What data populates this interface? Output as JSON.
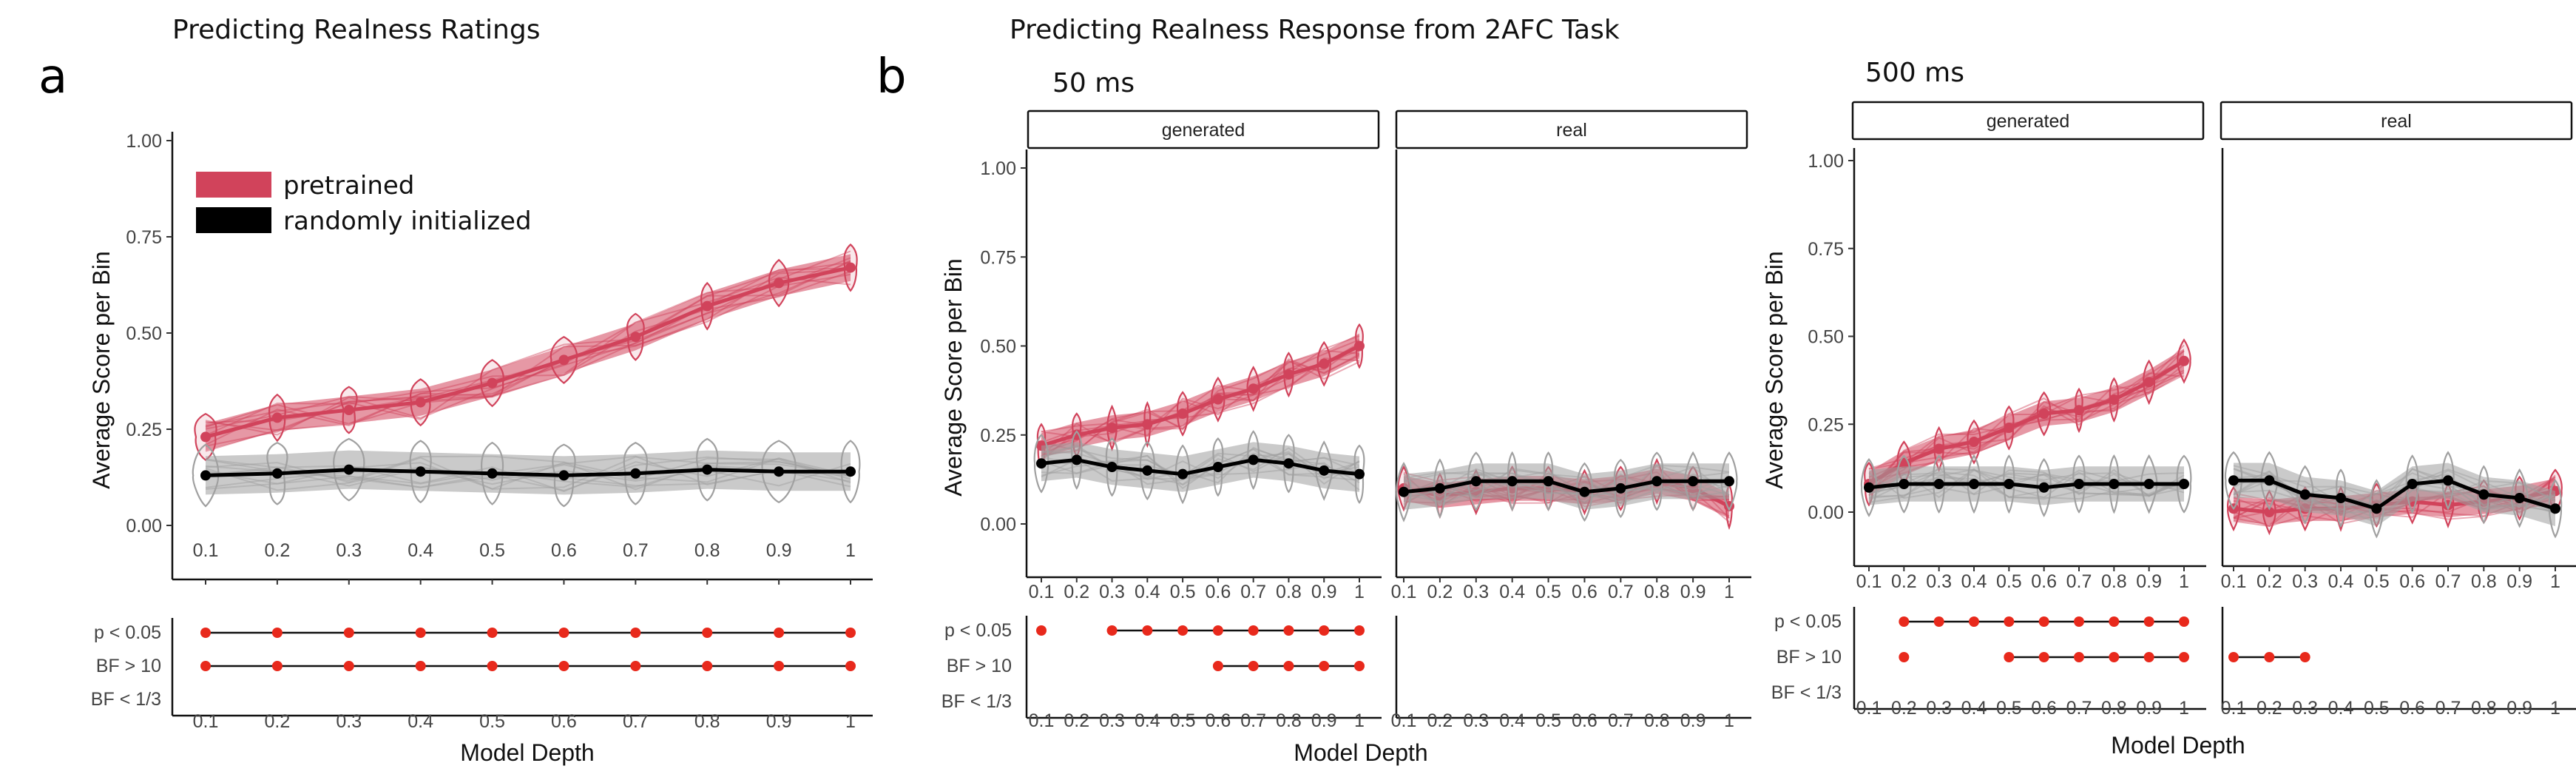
{
  "figure": {
    "title_a": "Predicting Realness Ratings",
    "title_b": "Predicting Realness Response from 2AFC Task",
    "letter_a": "a",
    "letter_b": "b",
    "label_50": "50 ms",
    "label_500": "500 ms",
    "xlabel": "Model Depth",
    "ylabel": "Average Score per Bin",
    "strip_generated": "generated",
    "strip_real": "real",
    "sig_rows": [
      "p < 0.05",
      "BF > 10",
      "BF < 1/3"
    ],
    "legend": [
      {
        "label": "pretrained",
        "color": "#d1435b"
      },
      {
        "label": "randomly initialized",
        "color": "#000000"
      }
    ],
    "colors": {
      "pretrained": "#d1435b",
      "random": "#000000",
      "random_band": "#9e9e9e",
      "sig_dot": "#e8291c"
    }
  },
  "chart_data": [
    {
      "id": "ratings",
      "type": "line",
      "title": "Predicting Realness Ratings",
      "xlabel": "Model Depth",
      "ylabel": "Average Score per Bin",
      "x": [
        0.1,
        0.2,
        0.3,
        0.4,
        0.5,
        0.6,
        0.7,
        0.8,
        0.9,
        1
      ],
      "ylim": [
        0,
        1
      ],
      "yticks": [
        "0.00",
        "0.25",
        "0.50",
        "0.75",
        "1.00"
      ],
      "series": [
        {
          "name": "pretrained",
          "values": [
            0.23,
            0.28,
            0.3,
            0.32,
            0.37,
            0.43,
            0.49,
            0.57,
            0.63,
            0.67
          ]
        },
        {
          "name": "randomly initialized",
          "values": [
            0.13,
            0.135,
            0.145,
            0.14,
            0.135,
            0.13,
            0.135,
            0.145,
            0.14,
            0.14
          ]
        }
      ],
      "significance": {
        "p < 0.05": [
          0.1,
          0.2,
          0.3,
          0.4,
          0.5,
          0.6,
          0.7,
          0.8,
          0.9,
          1
        ],
        "BF > 10": [
          0.1,
          0.2,
          0.3,
          0.4,
          0.5,
          0.6,
          0.7,
          0.8,
          0.9,
          1
        ],
        "BF < 1/3": []
      }
    },
    {
      "id": "2afc_50_generated",
      "type": "line",
      "facet": "generated",
      "x": [
        0.1,
        0.2,
        0.3,
        0.4,
        0.5,
        0.6,
        0.7,
        0.8,
        0.9,
        1
      ],
      "ylim": [
        0,
        1
      ],
      "series": [
        {
          "name": "pretrained",
          "values": [
            0.22,
            0.25,
            0.27,
            0.28,
            0.31,
            0.35,
            0.38,
            0.42,
            0.45,
            0.5
          ]
        },
        {
          "name": "randomly initialized",
          "values": [
            0.17,
            0.18,
            0.16,
            0.15,
            0.14,
            0.16,
            0.18,
            0.17,
            0.15,
            0.14
          ]
        }
      ],
      "significance": {
        "p < 0.05": [
          0.1,
          0.3,
          0.4,
          0.5,
          0.6,
          0.7,
          0.8,
          0.9,
          1
        ],
        "BF > 10": [
          0.6,
          0.7,
          0.8,
          0.9,
          1
        ],
        "BF < 1/3": []
      }
    },
    {
      "id": "2afc_50_real",
      "type": "line",
      "facet": "real",
      "x": [
        0.1,
        0.2,
        0.3,
        0.4,
        0.5,
        0.6,
        0.7,
        0.8,
        0.9,
        1
      ],
      "ylim": [
        0,
        1
      ],
      "series": [
        {
          "name": "pretrained",
          "values": [
            0.1,
            0.08,
            0.09,
            0.1,
            0.1,
            0.09,
            0.1,
            0.12,
            0.1,
            0.05
          ]
        },
        {
          "name": "randomly initialized",
          "values": [
            0.09,
            0.1,
            0.12,
            0.12,
            0.12,
            0.09,
            0.1,
            0.12,
            0.12,
            0.12
          ]
        }
      ],
      "significance": {
        "p < 0.05": [],
        "BF > 10": [],
        "BF < 1/3": []
      }
    },
    {
      "id": "2afc_500_generated",
      "type": "line",
      "facet": "generated",
      "x": [
        0.1,
        0.2,
        0.3,
        0.4,
        0.5,
        0.6,
        0.7,
        0.8,
        0.9,
        1
      ],
      "ylim": [
        0,
        1
      ],
      "series": [
        {
          "name": "pretrained",
          "values": [
            0.08,
            0.14,
            0.18,
            0.2,
            0.24,
            0.28,
            0.29,
            0.32,
            0.37,
            0.43
          ]
        },
        {
          "name": "randomly initialized",
          "values": [
            0.07,
            0.08,
            0.08,
            0.08,
            0.08,
            0.07,
            0.08,
            0.08,
            0.08,
            0.08
          ]
        }
      ],
      "significance": {
        "p < 0.05": [
          0.2,
          0.3,
          0.4,
          0.5,
          0.6,
          0.7,
          0.8,
          0.9,
          1
        ],
        "BF > 10": [
          0.2,
          0.5,
          0.6,
          0.7,
          0.8,
          0.9,
          1
        ],
        "BF < 1/3": []
      }
    },
    {
      "id": "2afc_500_real",
      "type": "line",
      "facet": "real",
      "x": [
        0.1,
        0.2,
        0.3,
        0.4,
        0.5,
        0.6,
        0.7,
        0.8,
        0.9,
        1
      ],
      "ylim": [
        0,
        1
      ],
      "series": [
        {
          "name": "pretrained",
          "values": [
            0.01,
            0.0,
            0.01,
            0.01,
            0.02,
            0.03,
            0.02,
            0.03,
            0.04,
            0.06
          ]
        },
        {
          "name": "randomly initialized",
          "values": [
            0.09,
            0.09,
            0.05,
            0.04,
            0.01,
            0.08,
            0.09,
            0.05,
            0.04,
            0.01
          ]
        }
      ],
      "significance": {
        "p < 0.05": [],
        "BF > 10": [
          0.1,
          0.2,
          0.3
        ],
        "BF < 1/3": []
      }
    }
  ]
}
